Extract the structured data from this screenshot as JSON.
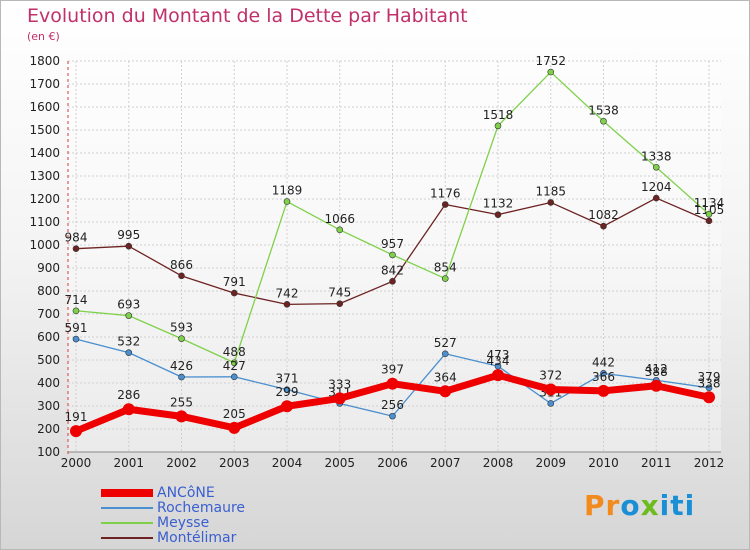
{
  "chart_data": {
    "type": "line",
    "title": "Evolution du Montant de la Dette par Habitant",
    "unit_label": "(en €)",
    "xlabel": "",
    "ylabel": "",
    "ylim": [
      100,
      1800
    ],
    "yticks": [
      100,
      200,
      300,
      400,
      500,
      600,
      700,
      800,
      900,
      1000,
      1100,
      1200,
      1300,
      1400,
      1500,
      1600,
      1700,
      1800
    ],
    "categories": [
      "2000",
      "2001",
      "2002",
      "2003",
      "2004",
      "2005",
      "2006",
      "2007",
      "2008",
      "2009",
      "2010",
      "2011",
      "2012"
    ],
    "grid": true,
    "legend_position": "bottom-left",
    "series": [
      {
        "name": "Montélimar",
        "color": "#6e2323",
        "values": [
          984,
          995,
          866,
          791,
          742,
          745,
          842,
          1176,
          1132,
          1185,
          1082,
          1204,
          1105
        ]
      },
      {
        "name": "Meysse",
        "color": "#7fd14a",
        "values": [
          714,
          693,
          593,
          488,
          1189,
          1066,
          957,
          854,
          1518,
          1752,
          1538,
          1338,
          1134
        ]
      },
      {
        "name": "Rochemaure",
        "color": "#4a8fd0",
        "values": [
          591,
          532,
          426,
          427,
          371,
          311,
          256,
          527,
          473,
          311,
          442,
          412,
          379
        ]
      },
      {
        "name": "ANCôNE",
        "color": "#ee0000",
        "values": [
          191,
          286,
          255,
          205,
          299,
          333,
          397,
          364,
          434,
          372,
          366,
          388,
          338
        ]
      }
    ]
  },
  "legend": [
    {
      "name": "ANCôNE",
      "color": "#ee0000"
    },
    {
      "name": "Rochemaure",
      "color": "#4a8fd0"
    },
    {
      "name": "Meysse",
      "color": "#7fd14a"
    },
    {
      "name": "Montélimar",
      "color": "#6e2323"
    }
  ],
  "logo": {
    "part1": "Pr",
    "part2": "o",
    "part3": "x",
    "part4": "iti"
  }
}
